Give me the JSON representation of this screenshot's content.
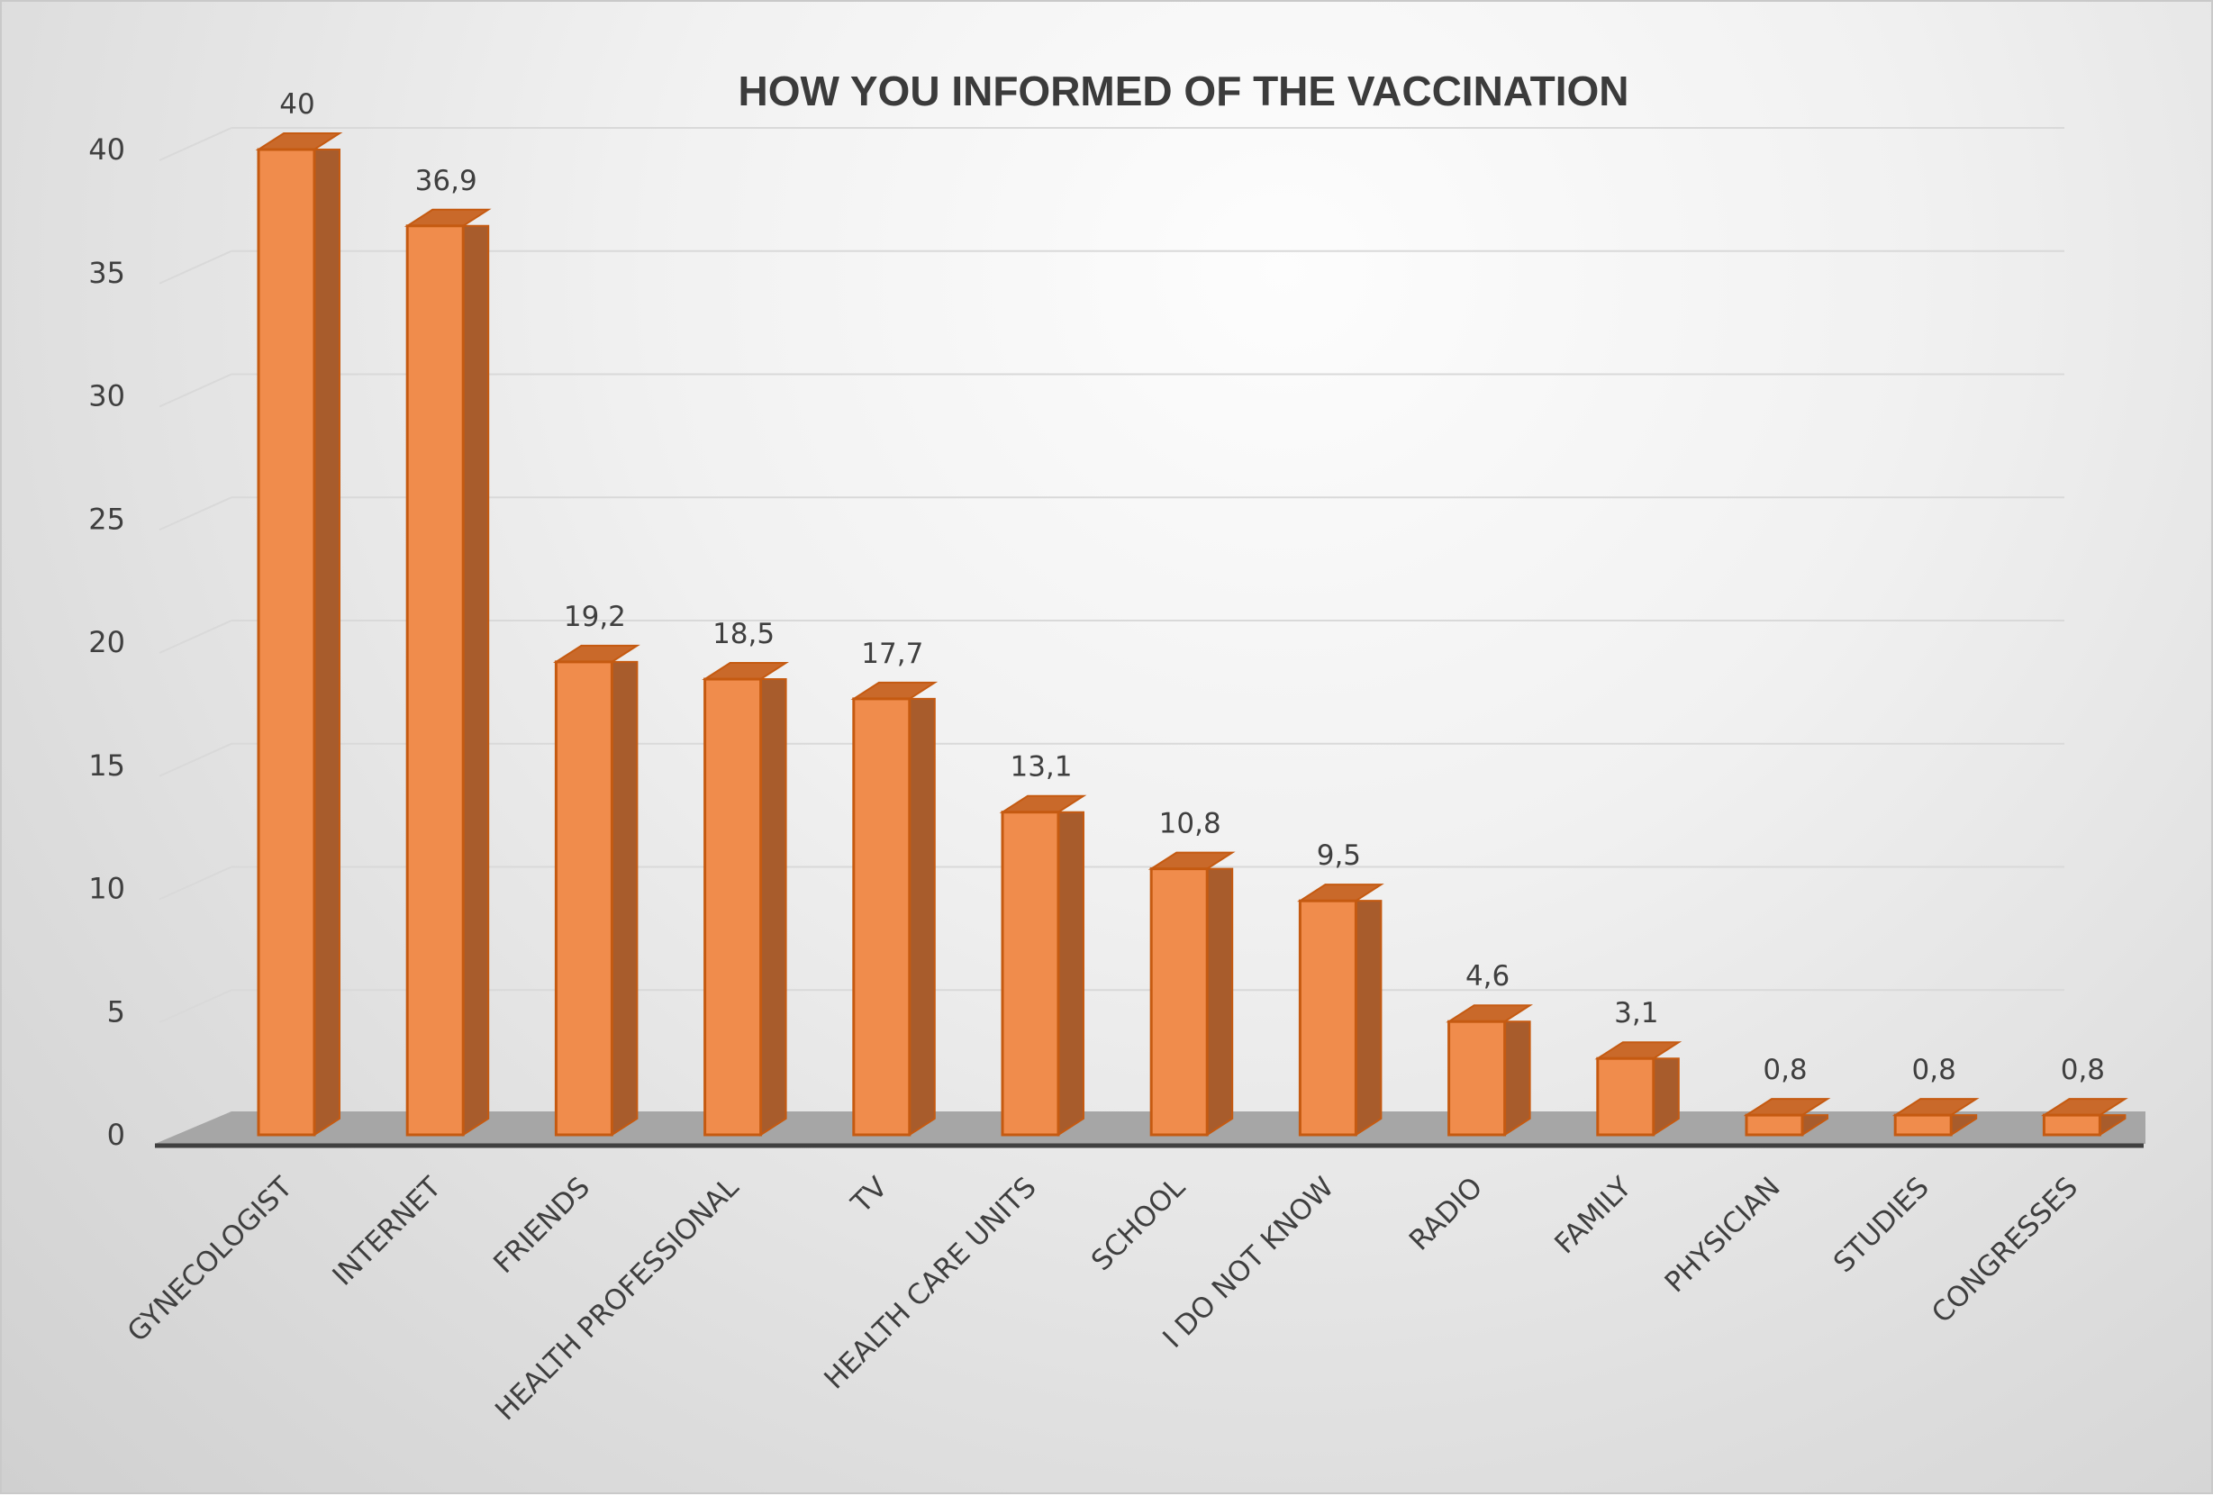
{
  "chart_data": {
    "type": "bar",
    "title": "HOW YOU INFORMED OF THE VACCINATION",
    "categories": [
      "GYNECOLOGIST",
      "INTERNET",
      "FRIENDS",
      "HEALTH PROFESSIONAL",
      "TV",
      "HEALTH CARE UNITS",
      "SCHOOL",
      "I DO NOT KNOW",
      "RADIO",
      "FAMILY",
      "PHYSICIAN",
      "STUDIES",
      "CONGRESSES"
    ],
    "values": [
      40,
      36.9,
      19.2,
      18.5,
      17.7,
      13.1,
      10.8,
      9.5,
      4.6,
      3.1,
      0.8,
      0.8,
      0.8
    ],
    "value_labels": [
      "40",
      "36,9",
      "19,2",
      "18,5",
      "17,7",
      "13,1",
      "10,8",
      "9,5",
      "4,6",
      "3,1",
      "0,8",
      "0,8",
      "0,8"
    ],
    "y_ticks": [
      "0",
      "5",
      "10",
      "15",
      "20",
      "25",
      "30",
      "35",
      "40"
    ],
    "ylim": [
      0,
      40
    ],
    "xlabel": "",
    "ylabel": "",
    "grid": true,
    "legend": "none",
    "style": "3d-column",
    "colors": {
      "bar_front": "#f08c4c",
      "bar_side": "#a85c2c",
      "bar_top": "#c9692a",
      "bar_edge": "#c55a11",
      "floor": "#a6a6a6",
      "gridline": "#d9d9d9",
      "axis": "#404040"
    }
  }
}
